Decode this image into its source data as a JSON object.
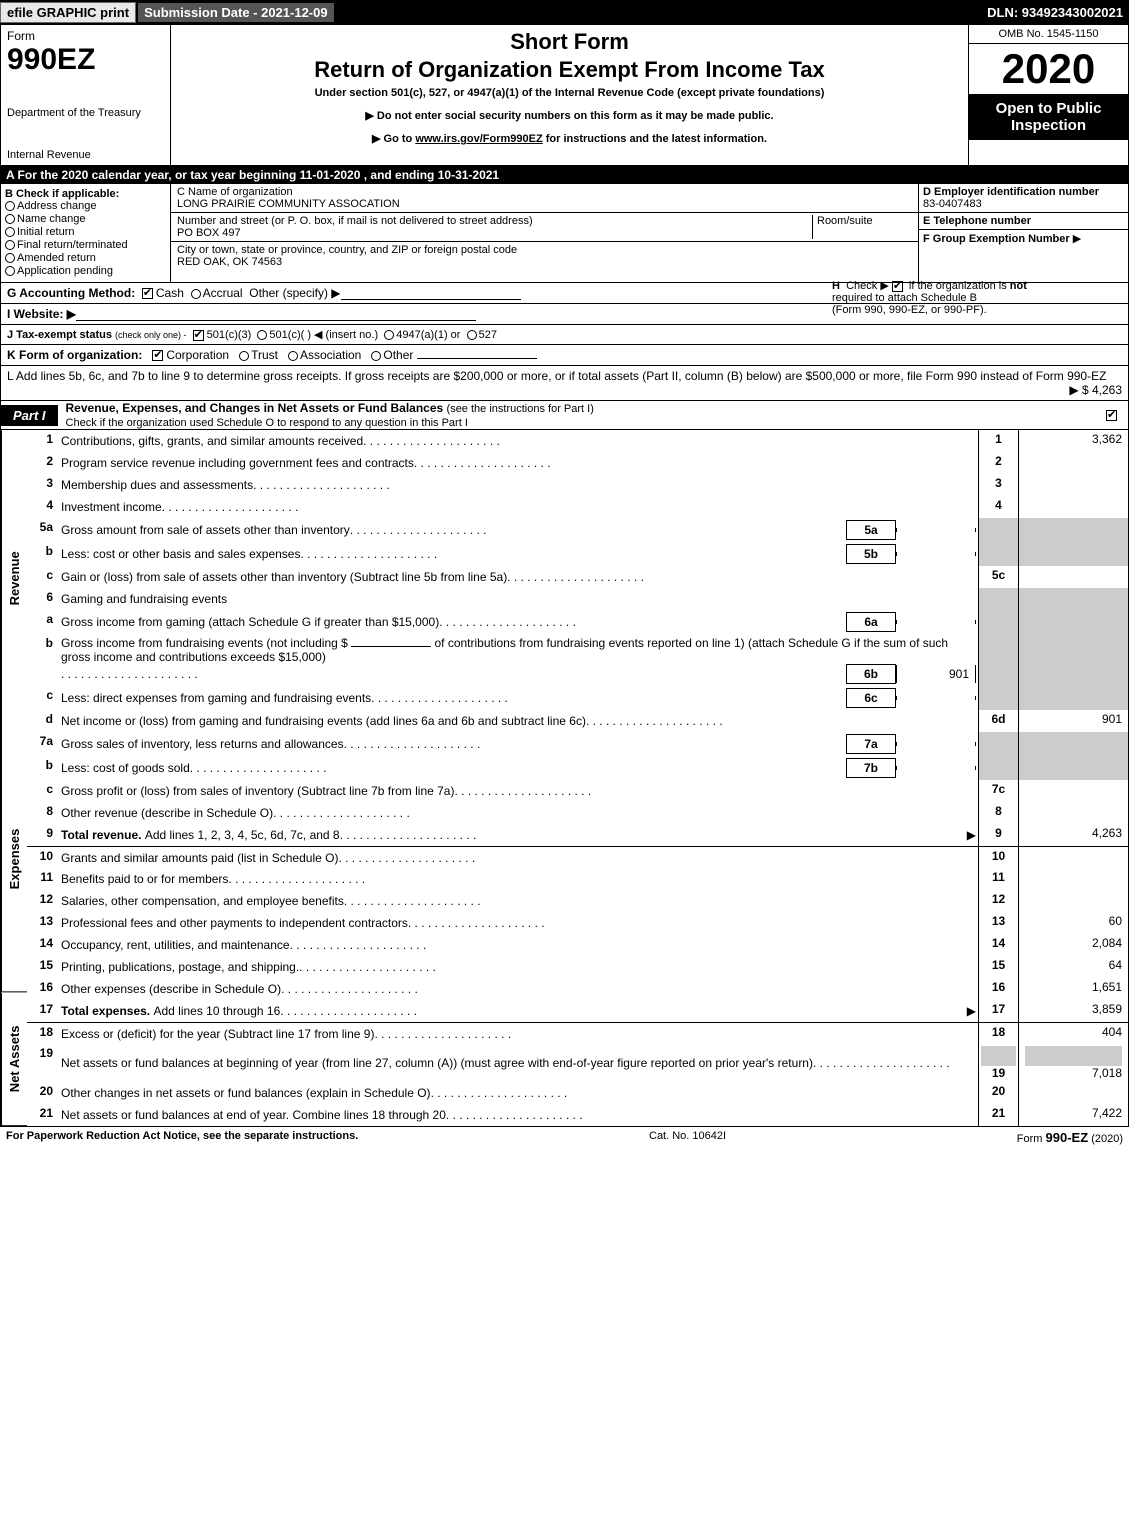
{
  "topbar": {
    "efile": "efile GRAPHIC print",
    "submission": "Submission Date - 2021-12-09",
    "dln": "DLN: 93492343002021"
  },
  "header": {
    "form_word": "Form",
    "form_no": "990EZ",
    "dept1": "Department of the Treasury",
    "dept2": "Internal Revenue",
    "short_form": "Short Form",
    "return_title": "Return of Organization Exempt From Income Tax",
    "under_section": "Under section 501(c), 527, or 4947(a)(1) of the Internal Revenue Code (except private foundations)",
    "bullet1": "▶ Do not enter social security numbers on this form as it may be made public.",
    "bullet2_pre": "▶ Go to ",
    "bullet2_link": "www.irs.gov/Form990EZ",
    "bullet2_post": " for instructions and the latest information.",
    "omb": "OMB No. 1545-1150",
    "year": "2020",
    "open": "Open to Public Inspection"
  },
  "rowA": "A For the 2020 calendar year, or tax year beginning 11-01-2020 , and ending 10-31-2021",
  "boxB": {
    "hdr": "B  Check if applicable:",
    "c1": "Address change",
    "c2": "Name change",
    "c3": "Initial return",
    "c4": "Final return/terminated",
    "c5": "Amended return",
    "c6": "Application pending"
  },
  "boxC": {
    "name_lbl": "C Name of organization",
    "name_val": "LONG PRAIRIE COMMUNITY ASSOCATION",
    "addr_lbl": "Number and street (or P. O. box, if mail is not delivered to street address)",
    "room_lbl": "Room/suite",
    "addr_val": "PO BOX 497",
    "city_lbl": "City or town, state or province, country, and ZIP or foreign postal code",
    "city_val": "RED OAK, OK  74563"
  },
  "boxD": {
    "d_hdr": "D Employer identification number",
    "d_val": "83-0407483",
    "e_hdr": "E Telephone number",
    "e_val": "",
    "f_hdr": "F Group Exemption Number",
    "f_arrow": "▶"
  },
  "rowG": {
    "lbl": "G Accounting Method:",
    "cash": "Cash",
    "accrual": "Accrual",
    "other": "Other (specify) ▶"
  },
  "rowH": {
    "h_lbl": "H",
    "txt1": "Check ▶",
    "txt2": "if the organization is ",
    "not": "not",
    "txt3": "required to attach Schedule B",
    "txt4": "(Form 990, 990-EZ, or 990-PF)."
  },
  "rowI": "I Website: ▶",
  "rowJ": {
    "lbl": "J Tax-exempt status",
    "sub": "(check only one) -",
    "o1": "501(c)(3)",
    "o2": "501(c)(  ) ◀ (insert no.)",
    "o3": "4947(a)(1) or",
    "o4": "527"
  },
  "rowK": {
    "lbl": "K Form of organization:",
    "o1": "Corporation",
    "o2": "Trust",
    "o3": "Association",
    "o4": "Other"
  },
  "rowL": {
    "txt1": "L Add lines 5b, 6c, and 7b to line 9 to determine gross receipts. If gross receipts are $200,000 or more, or if total assets (Part II, column (B) below) are $500,000 or more, file Form 990 instead of Form 990-EZ",
    "val": "▶ $ 4,263"
  },
  "part1": {
    "lbl": "Part I",
    "title": "Revenue, Expenses, and Changes in Net Assets or Fund Balances",
    "sub": "(see the instructions for Part I)",
    "check": "Check if the organization used Schedule O to respond to any question in this Part I"
  },
  "vlabels": {
    "rev": "Revenue",
    "exp": "Expenses",
    "net": "Net Assets"
  },
  "lines": {
    "l1": {
      "n": "1",
      "d": "Contributions, gifts, grants, and similar amounts received",
      "c": "1",
      "v": "3,362"
    },
    "l2": {
      "n": "2",
      "d": "Program service revenue including government fees and contracts",
      "c": "2",
      "v": ""
    },
    "l3": {
      "n": "3",
      "d": "Membership dues and assessments",
      "c": "3",
      "v": ""
    },
    "l4": {
      "n": "4",
      "d": "Investment income",
      "c": "4",
      "v": ""
    },
    "l5a": {
      "n": "5a",
      "d": "Gross amount from sale of assets other than inventory",
      "ib": "5a",
      "iv": ""
    },
    "l5b": {
      "n": "b",
      "d": "Less: cost or other basis and sales expenses",
      "ib": "5b",
      "iv": ""
    },
    "l5c": {
      "n": "c",
      "d": "Gain or (loss) from sale of assets other than inventory (Subtract line 5b from line 5a)",
      "c": "5c",
      "v": ""
    },
    "l6": {
      "n": "6",
      "d": "Gaming and fundraising events"
    },
    "l6a": {
      "n": "a",
      "d": "Gross income from gaming (attach Schedule G if greater than $15,000)",
      "ib": "6a",
      "iv": ""
    },
    "l6b": {
      "n": "b",
      "d1": "Gross income from fundraising events (not including $",
      "d2": "of contributions from fundraising events reported on line 1) (attach Schedule G if the sum of such gross income and contributions exceeds $15,000)",
      "ib": "6b",
      "iv": "901"
    },
    "l6c": {
      "n": "c",
      "d": "Less: direct expenses from gaming and fundraising events",
      "ib": "6c",
      "iv": ""
    },
    "l6d": {
      "n": "d",
      "d": "Net income or (loss) from gaming and fundraising events (add lines 6a and 6b and subtract line 6c)",
      "c": "6d",
      "v": "901"
    },
    "l7a": {
      "n": "7a",
      "d": "Gross sales of inventory, less returns and allowances",
      "ib": "7a",
      "iv": ""
    },
    "l7b": {
      "n": "b",
      "d": "Less: cost of goods sold",
      "ib": "7b",
      "iv": ""
    },
    "l7c": {
      "n": "c",
      "d": "Gross profit or (loss) from sales of inventory (Subtract line 7b from line 7a)",
      "c": "7c",
      "v": ""
    },
    "l8": {
      "n": "8",
      "d": "Other revenue (describe in Schedule O)",
      "c": "8",
      "v": ""
    },
    "l9": {
      "n": "9",
      "d": "Total revenue. ",
      "d2": "Add lines 1, 2, 3, 4, 5c, 6d, 7c, and 8",
      "c": "9",
      "v": "4,263"
    },
    "l10": {
      "n": "10",
      "d": "Grants and similar amounts paid (list in Schedule O)",
      "c": "10",
      "v": ""
    },
    "l11": {
      "n": "11",
      "d": "Benefits paid to or for members",
      "c": "11",
      "v": ""
    },
    "l12": {
      "n": "12",
      "d": "Salaries, other compensation, and employee benefits",
      "c": "12",
      "v": ""
    },
    "l13": {
      "n": "13",
      "d": "Professional fees and other payments to independent contractors",
      "c": "13",
      "v": "60"
    },
    "l14": {
      "n": "14",
      "d": "Occupancy, rent, utilities, and maintenance",
      "c": "14",
      "v": "2,084"
    },
    "l15": {
      "n": "15",
      "d": "Printing, publications, postage, and shipping.",
      "c": "15",
      "v": "64"
    },
    "l16": {
      "n": "16",
      "d": "Other expenses (describe in Schedule O)",
      "c": "16",
      "v": "1,651"
    },
    "l17": {
      "n": "17",
      "d": "Total expenses. ",
      "d2": "Add lines 10 through 16",
      "c": "17",
      "v": "3,859"
    },
    "l18": {
      "n": "18",
      "d": "Excess or (deficit) for the year (Subtract line 17 from line 9)",
      "c": "18",
      "v": "404"
    },
    "l19": {
      "n": "19",
      "d": "Net assets or fund balances at beginning of year (from line 27, column (A)) (must agree with end-of-year figure reported on prior year's return)",
      "c": "19",
      "v": "7,018"
    },
    "l20": {
      "n": "20",
      "d": "Other changes in net assets or fund balances (explain in Schedule O)",
      "c": "20",
      "v": ""
    },
    "l21": {
      "n": "21",
      "d": "Net assets or fund balances at end of year. Combine lines 18 through 20",
      "c": "21",
      "v": "7,422"
    }
  },
  "footer": {
    "l": "For Paperwork Reduction Act Notice, see the separate instructions.",
    "c": "Cat. No. 10642I",
    "r1": "Form ",
    "r2": "990-EZ",
    "r3": " (2020)"
  }
}
